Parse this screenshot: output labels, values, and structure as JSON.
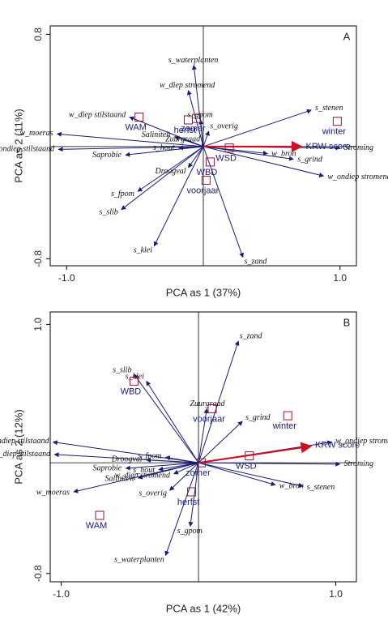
{
  "chart_data": [
    {
      "type": "biplot",
      "panel_label": "A",
      "xlabel": "PCA as 1 (37%)",
      "ylabel": "PCA as 2 (11%)",
      "xlim": [
        -1.12,
        1.12
      ],
      "ylim": [
        -0.85,
        0.86
      ],
      "xticks": [
        {
          "value": -1,
          "label": "-1.0"
        },
        {
          "value": 1,
          "label": "1.0"
        }
      ],
      "yticks": [
        -0.8,
        0.8
      ],
      "arrow_color": "#1a1a7a",
      "point_color": "#a01030",
      "arrows": [
        {
          "name": "s_waterplanten",
          "x": -0.07,
          "y": 0.58
        },
        {
          "name": "w_diep stromend",
          "x": -0.11,
          "y": 0.4
        },
        {
          "name": "w_diep stilstaand",
          "x": -0.54,
          "y": 0.21
        },
        {
          "name": "w_moeras",
          "x": -1.07,
          "y": 0.09
        },
        {
          "name": "w_ondiep stilstaand",
          "x": -1.06,
          "y": -0.02
        },
        {
          "name": "Saliniteit",
          "x": -0.21,
          "y": 0.07
        },
        {
          "name": "Saprobie",
          "x": -0.57,
          "y": -0.06
        },
        {
          "name": "s_hout",
          "x": -0.18,
          "y": -0.01
        },
        {
          "name": "Droogval",
          "x": -0.11,
          "y": -0.15
        },
        {
          "name": "s_fpom",
          "x": -0.48,
          "y": -0.32
        },
        {
          "name": "s_slib",
          "x": -0.6,
          "y": -0.45
        },
        {
          "name": "s_klei",
          "x": -0.36,
          "y": -0.71
        },
        {
          "name": "s_zand",
          "x": 0.29,
          "y": -0.79
        },
        {
          "name": "w_ondiep stromend",
          "x": 0.88,
          "y": -0.21
        },
        {
          "name": "s_grind",
          "x": 0.66,
          "y": -0.09
        },
        {
          "name": "w_bron",
          "x": 0.47,
          "y": -0.05
        },
        {
          "name": "Stroming",
          "x": 1.0,
          "y": -0.01
        },
        {
          "name": "s_stenen",
          "x": 0.79,
          "y": 0.26
        },
        {
          "name": "s_overig",
          "x": 0.04,
          "y": 0.11
        },
        {
          "name": "s_gpom",
          "x": -0.02,
          "y": 0.19
        },
        {
          "name": "Zuurgraad",
          "x": -0.01,
          "y": 0.02
        },
        {
          "name": "KRW score",
          "x": 0.72,
          "y": 0.0,
          "color": "#d01020"
        }
      ],
      "points": [
        {
          "name": "WAM",
          "x": -0.47,
          "y": 0.21
        },
        {
          "name": "herfst",
          "x": -0.11,
          "y": 0.19
        },
        {
          "name": "zomer",
          "x": -0.05,
          "y": 0.2
        },
        {
          "name": "winter",
          "x": 0.98,
          "y": 0.18
        },
        {
          "name": "WSD",
          "x": 0.19,
          "y": -0.01
        },
        {
          "name": "WBD",
          "x": 0.05,
          "y": -0.11
        },
        {
          "name": "voorjaar",
          "x": 0.02,
          "y": -0.24
        }
      ]
    },
    {
      "type": "biplot",
      "panel_label": "B",
      "xlabel": "PCA as 1 (42%)",
      "ylabel": "PCA as 2 (12%)",
      "xlim": [
        -1.08,
        1.15
      ],
      "ylim": [
        -0.86,
        1.09
      ],
      "xticks": [
        {
          "value": -1,
          "label": "-1.0"
        },
        {
          "value": 1,
          "label": "1.0"
        }
      ],
      "yticks": [
        -0.8,
        {
          "value": 1,
          "label": "1.0"
        }
      ],
      "arrow_color": "#1a1a7a",
      "point_color": "#a01030",
      "arrows": [
        {
          "name": "s_zand",
          "x": 0.29,
          "y": 0.88
        },
        {
          "name": "s_slib",
          "x": -0.47,
          "y": 0.64
        },
        {
          "name": "s_klei",
          "x": -0.38,
          "y": 0.59
        },
        {
          "name": "Zuurgraad",
          "x": 0.06,
          "y": 0.39
        },
        {
          "name": "s_grind",
          "x": 0.32,
          "y": 0.3
        },
        {
          "name": "w_ondiep stromend",
          "x": 0.97,
          "y": 0.15
        },
        {
          "name": "Stroming",
          "x": 1.03,
          "y": -0.01
        },
        {
          "name": "s_stenen",
          "x": 0.76,
          "y": -0.17
        },
        {
          "name": "w_bron",
          "x": 0.56,
          "y": -0.16
        },
        {
          "name": "w_ondiep stilstaand",
          "x": -1.06,
          "y": 0.15
        },
        {
          "name": "w_diep stilstaand",
          "x": -1.05,
          "y": 0.06
        },
        {
          "name": "Droogval",
          "x": -0.38,
          "y": 0.02
        },
        {
          "name": "s_fpom",
          "x": -0.24,
          "y": 0.04
        },
        {
          "name": "Saprobie",
          "x": -0.53,
          "y": -0.04
        },
        {
          "name": "s_hout",
          "x": -0.29,
          "y": -0.05
        },
        {
          "name": "Saliniteit",
          "x": -0.44,
          "y": -0.11
        },
        {
          "name": "w_diep stromend",
          "x": -0.18,
          "y": -0.08
        },
        {
          "name": "s_overig",
          "x": -0.21,
          "y": -0.2
        },
        {
          "name": "w_moeras",
          "x": -0.91,
          "y": -0.21
        },
        {
          "name": "s_gpom",
          "x": -0.06,
          "y": -0.46
        },
        {
          "name": "s_waterplanten",
          "x": -0.24,
          "y": -0.67
        },
        {
          "name": "KRW score",
          "x": 0.82,
          "y": 0.12,
          "color": "#d01020"
        }
      ],
      "points": [
        {
          "name": "WBD",
          "x": -0.47,
          "y": 0.59
        },
        {
          "name": "voorjaar",
          "x": 0.1,
          "y": 0.39
        },
        {
          "name": "winter",
          "x": 0.65,
          "y": 0.34
        },
        {
          "name": "WSD",
          "x": 0.37,
          "y": 0.05
        },
        {
          "name": "zomer",
          "x": 0.02,
          "y": 0.0
        },
        {
          "name": "herfst",
          "x": -0.05,
          "y": -0.21
        },
        {
          "name": "WAM",
          "x": -0.72,
          "y": -0.38
        }
      ]
    }
  ]
}
